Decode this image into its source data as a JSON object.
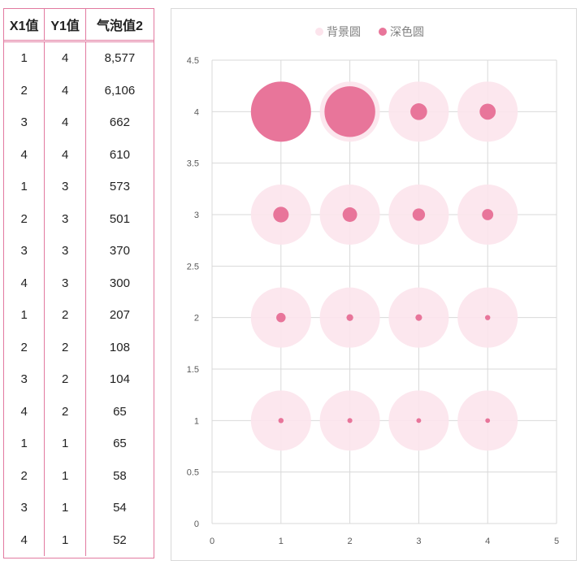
{
  "table": {
    "headers": [
      "X1值",
      "Y1值",
      "气泡值2"
    ],
    "rows": [
      [
        "1",
        "4",
        "8,577"
      ],
      [
        "2",
        "4",
        "6,106"
      ],
      [
        "3",
        "4",
        "662"
      ],
      [
        "4",
        "4",
        "610"
      ],
      [
        "1",
        "3",
        "573"
      ],
      [
        "2",
        "3",
        "501"
      ],
      [
        "3",
        "3",
        "370"
      ],
      [
        "4",
        "3",
        "300"
      ],
      [
        "1",
        "2",
        "207"
      ],
      [
        "2",
        "2",
        "108"
      ],
      [
        "3",
        "2",
        "104"
      ],
      [
        "4",
        "2",
        "65"
      ],
      [
        "1",
        "1",
        "65"
      ],
      [
        "2",
        "1",
        "58"
      ],
      [
        "3",
        "1",
        "54"
      ],
      [
        "4",
        "1",
        "52"
      ]
    ]
  },
  "chart_data": {
    "type": "scatter",
    "subtype": "bubble",
    "title": "",
    "xlabel": "",
    "ylabel": "",
    "xlim": [
      0,
      5
    ],
    "ylim": [
      0,
      4.5
    ],
    "x_ticks": [
      "0",
      "1",
      "2",
      "3",
      "4",
      "5"
    ],
    "y_ticks": [
      "0",
      "0.5",
      "1",
      "1.5",
      "2",
      "2.5",
      "3",
      "3.5",
      "4",
      "4.5"
    ],
    "grid": true,
    "legend_position": "top",
    "series": [
      {
        "name": "背景圆",
        "color": "#fce4ec",
        "points": [
          {
            "x": 1,
            "y": 4,
            "size": 8577
          },
          {
            "x": 2,
            "y": 4,
            "size": 8577
          },
          {
            "x": 3,
            "y": 4,
            "size": 8577
          },
          {
            "x": 4,
            "y": 4,
            "size": 8577
          },
          {
            "x": 1,
            "y": 3,
            "size": 8577
          },
          {
            "x": 2,
            "y": 3,
            "size": 8577
          },
          {
            "x": 3,
            "y": 3,
            "size": 8577
          },
          {
            "x": 4,
            "y": 3,
            "size": 8577
          },
          {
            "x": 1,
            "y": 2,
            "size": 8577
          },
          {
            "x": 2,
            "y": 2,
            "size": 8577
          },
          {
            "x": 3,
            "y": 2,
            "size": 8577
          },
          {
            "x": 4,
            "y": 2,
            "size": 8577
          },
          {
            "x": 1,
            "y": 1,
            "size": 8577
          },
          {
            "x": 2,
            "y": 1,
            "size": 8577
          },
          {
            "x": 3,
            "y": 1,
            "size": 8577
          },
          {
            "x": 4,
            "y": 1,
            "size": 8577
          }
        ]
      },
      {
        "name": "深色圆",
        "color": "#e8759a",
        "points": [
          {
            "x": 1,
            "y": 4,
            "size": 8577
          },
          {
            "x": 2,
            "y": 4,
            "size": 6106
          },
          {
            "x": 3,
            "y": 4,
            "size": 662
          },
          {
            "x": 4,
            "y": 4,
            "size": 610
          },
          {
            "x": 1,
            "y": 3,
            "size": 573
          },
          {
            "x": 2,
            "y": 3,
            "size": 501
          },
          {
            "x": 3,
            "y": 3,
            "size": 370
          },
          {
            "x": 4,
            "y": 3,
            "size": 300
          },
          {
            "x": 1,
            "y": 2,
            "size": 207
          },
          {
            "x": 2,
            "y": 2,
            "size": 108
          },
          {
            "x": 3,
            "y": 2,
            "size": 104
          },
          {
            "x": 4,
            "y": 2,
            "size": 65
          },
          {
            "x": 1,
            "y": 1,
            "size": 65
          },
          {
            "x": 2,
            "y": 1,
            "size": 58
          },
          {
            "x": 3,
            "y": 1,
            "size": 54
          },
          {
            "x": 4,
            "y": 1,
            "size": 52
          }
        ]
      }
    ]
  }
}
